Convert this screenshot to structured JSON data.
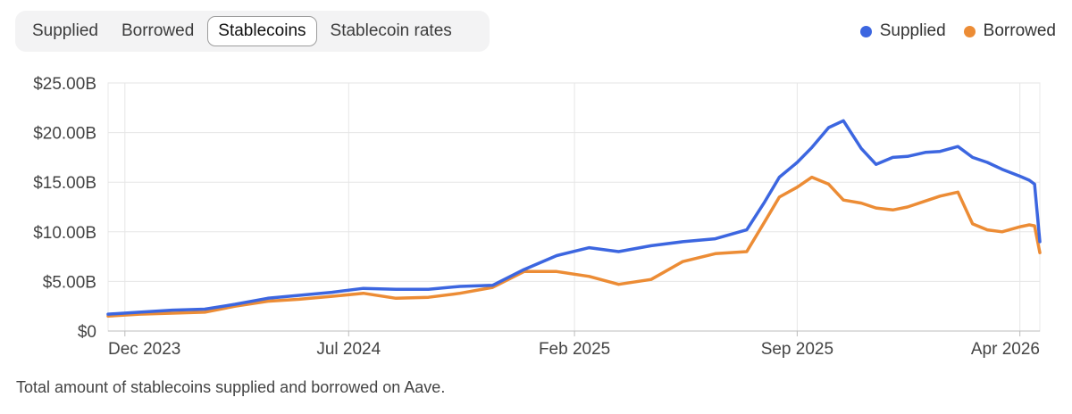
{
  "tabs": [
    {
      "label": "Supplied"
    },
    {
      "label": "Borrowed"
    },
    {
      "label": "Stablecoins",
      "active": true
    },
    {
      "label": "Stablecoin rates"
    }
  ],
  "caption": "Total amount of stablecoins supplied and borrowed on Aave.",
  "colors": {
    "supplied": "#3c66e0",
    "borrowed": "#ec8c35"
  },
  "chart_data": {
    "type": "line",
    "title": "",
    "xlabel": "",
    "ylabel": "",
    "x_ticks": [
      "Dec 2023",
      "Jul 2024",
      "Feb 2025",
      "Sep 2025",
      "Apr 2026"
    ],
    "y_ticks": [
      "$0",
      "$5.00B",
      "$10.00B",
      "$15.00B",
      "$20.00B",
      "$25.00B"
    ],
    "ylim": [
      0,
      25
    ],
    "y_unit": "billions USD",
    "xlim": [
      "2023-11-15",
      "2026-04-20"
    ],
    "grid": true,
    "legend_position": "top-right",
    "x": [
      "2023-11-15",
      "2023-12-15",
      "2024-01-15",
      "2024-02-15",
      "2024-03-15",
      "2024-04-15",
      "2024-05-15",
      "2024-06-15",
      "2024-07-15",
      "2024-08-15",
      "2024-09-15",
      "2024-10-15",
      "2024-11-15",
      "2024-12-15",
      "2025-01-15",
      "2025-02-15",
      "2025-03-15",
      "2025-04-15",
      "2025-05-15",
      "2025-06-15",
      "2025-07-15",
      "2025-08-01",
      "2025-08-15",
      "2025-09-01",
      "2025-09-15",
      "2025-10-01",
      "2025-10-15",
      "2025-11-01",
      "2025-11-15",
      "2025-12-01",
      "2025-12-15",
      "2026-01-01",
      "2026-01-15",
      "2026-02-01",
      "2026-02-15",
      "2026-03-01",
      "2026-03-15",
      "2026-04-01",
      "2026-04-10",
      "2026-04-15",
      "2026-04-20"
    ],
    "series": [
      {
        "name": "Supplied",
        "color": "#3c66e0",
        "values": [
          1.7,
          1.9,
          2.1,
          2.2,
          2.7,
          3.3,
          3.6,
          3.9,
          4.3,
          4.2,
          4.2,
          4.5,
          4.6,
          6.2,
          7.6,
          8.4,
          8.0,
          8.6,
          9.0,
          9.3,
          10.2,
          13.0,
          15.5,
          17.0,
          18.5,
          20.5,
          21.2,
          18.4,
          16.8,
          17.5,
          17.6,
          18.0,
          18.1,
          18.6,
          17.5,
          17.0,
          16.3,
          15.6,
          15.2,
          14.8,
          9.0
        ]
      },
      {
        "name": "Borrowed",
        "color": "#ec8c35",
        "values": [
          1.5,
          1.7,
          1.8,
          1.9,
          2.5,
          3.0,
          3.2,
          3.5,
          3.8,
          3.3,
          3.4,
          3.8,
          4.4,
          6.0,
          6.0,
          5.5,
          4.7,
          5.2,
          7.0,
          7.8,
          8.0,
          11.0,
          13.5,
          14.5,
          15.5,
          14.8,
          13.2,
          12.9,
          12.4,
          12.2,
          12.5,
          13.1,
          13.6,
          14.0,
          10.8,
          10.2,
          10.0,
          10.5,
          10.7,
          10.6,
          7.9
        ]
      }
    ]
  }
}
